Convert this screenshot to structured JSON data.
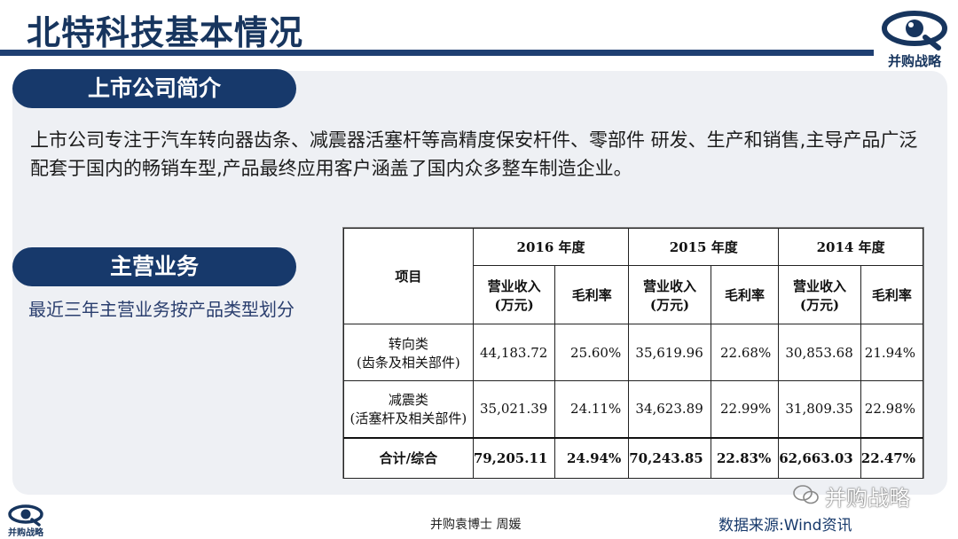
{
  "header": {
    "title": "北特科技基本情况",
    "logo_text": "并购战略"
  },
  "section1": {
    "label": "上市公司简介",
    "text": "上市公司专注于汽车转向器齿条、减震器活塞杆等高精度保安杆件、零部件 研发、生产和销售,主导产品广泛配套于国内的畅销车型,产品最终应用客户涵盖了国内众多整车制造企业。"
  },
  "section2": {
    "label": "主营业务",
    "subtitle": "最近三年主营业务按产品类型划分"
  },
  "table": {
    "item_header": "项目",
    "years": [
      "2016 年度",
      "2015 年度",
      "2014 年度"
    ],
    "revenue_header_l1": "营业收入",
    "revenue_header_l2": "(万元)",
    "margin_header": "毛利率",
    "rows": [
      {
        "name": "转向类",
        "detail": "(齿条及相关部件)",
        "values": [
          "44,183.72",
          "25.60%",
          "35,619.96",
          "22.68%",
          "30,853.68",
          "21.94%"
        ]
      },
      {
        "name": "减震类",
        "detail": "(活塞杆及相关部件)",
        "values": [
          "35,021.39",
          "24.11%",
          "34,623.89",
          "22.99%",
          "31,809.35",
          "22.98%"
        ]
      },
      {
        "name": "合计/综合",
        "detail": "",
        "values": [
          "79,205.11",
          "24.94%",
          "70,243.85",
          "22.83%",
          "62,663.03",
          "22.47%"
        ]
      }
    ]
  },
  "footer": {
    "logo_text": "并购战略",
    "author": "并购袁博士 周媛",
    "source": "数据来源:Wind资讯",
    "watermark": "并购战略"
  },
  "colors": {
    "navy": "#17396b",
    "panel": "#eef0f4"
  }
}
